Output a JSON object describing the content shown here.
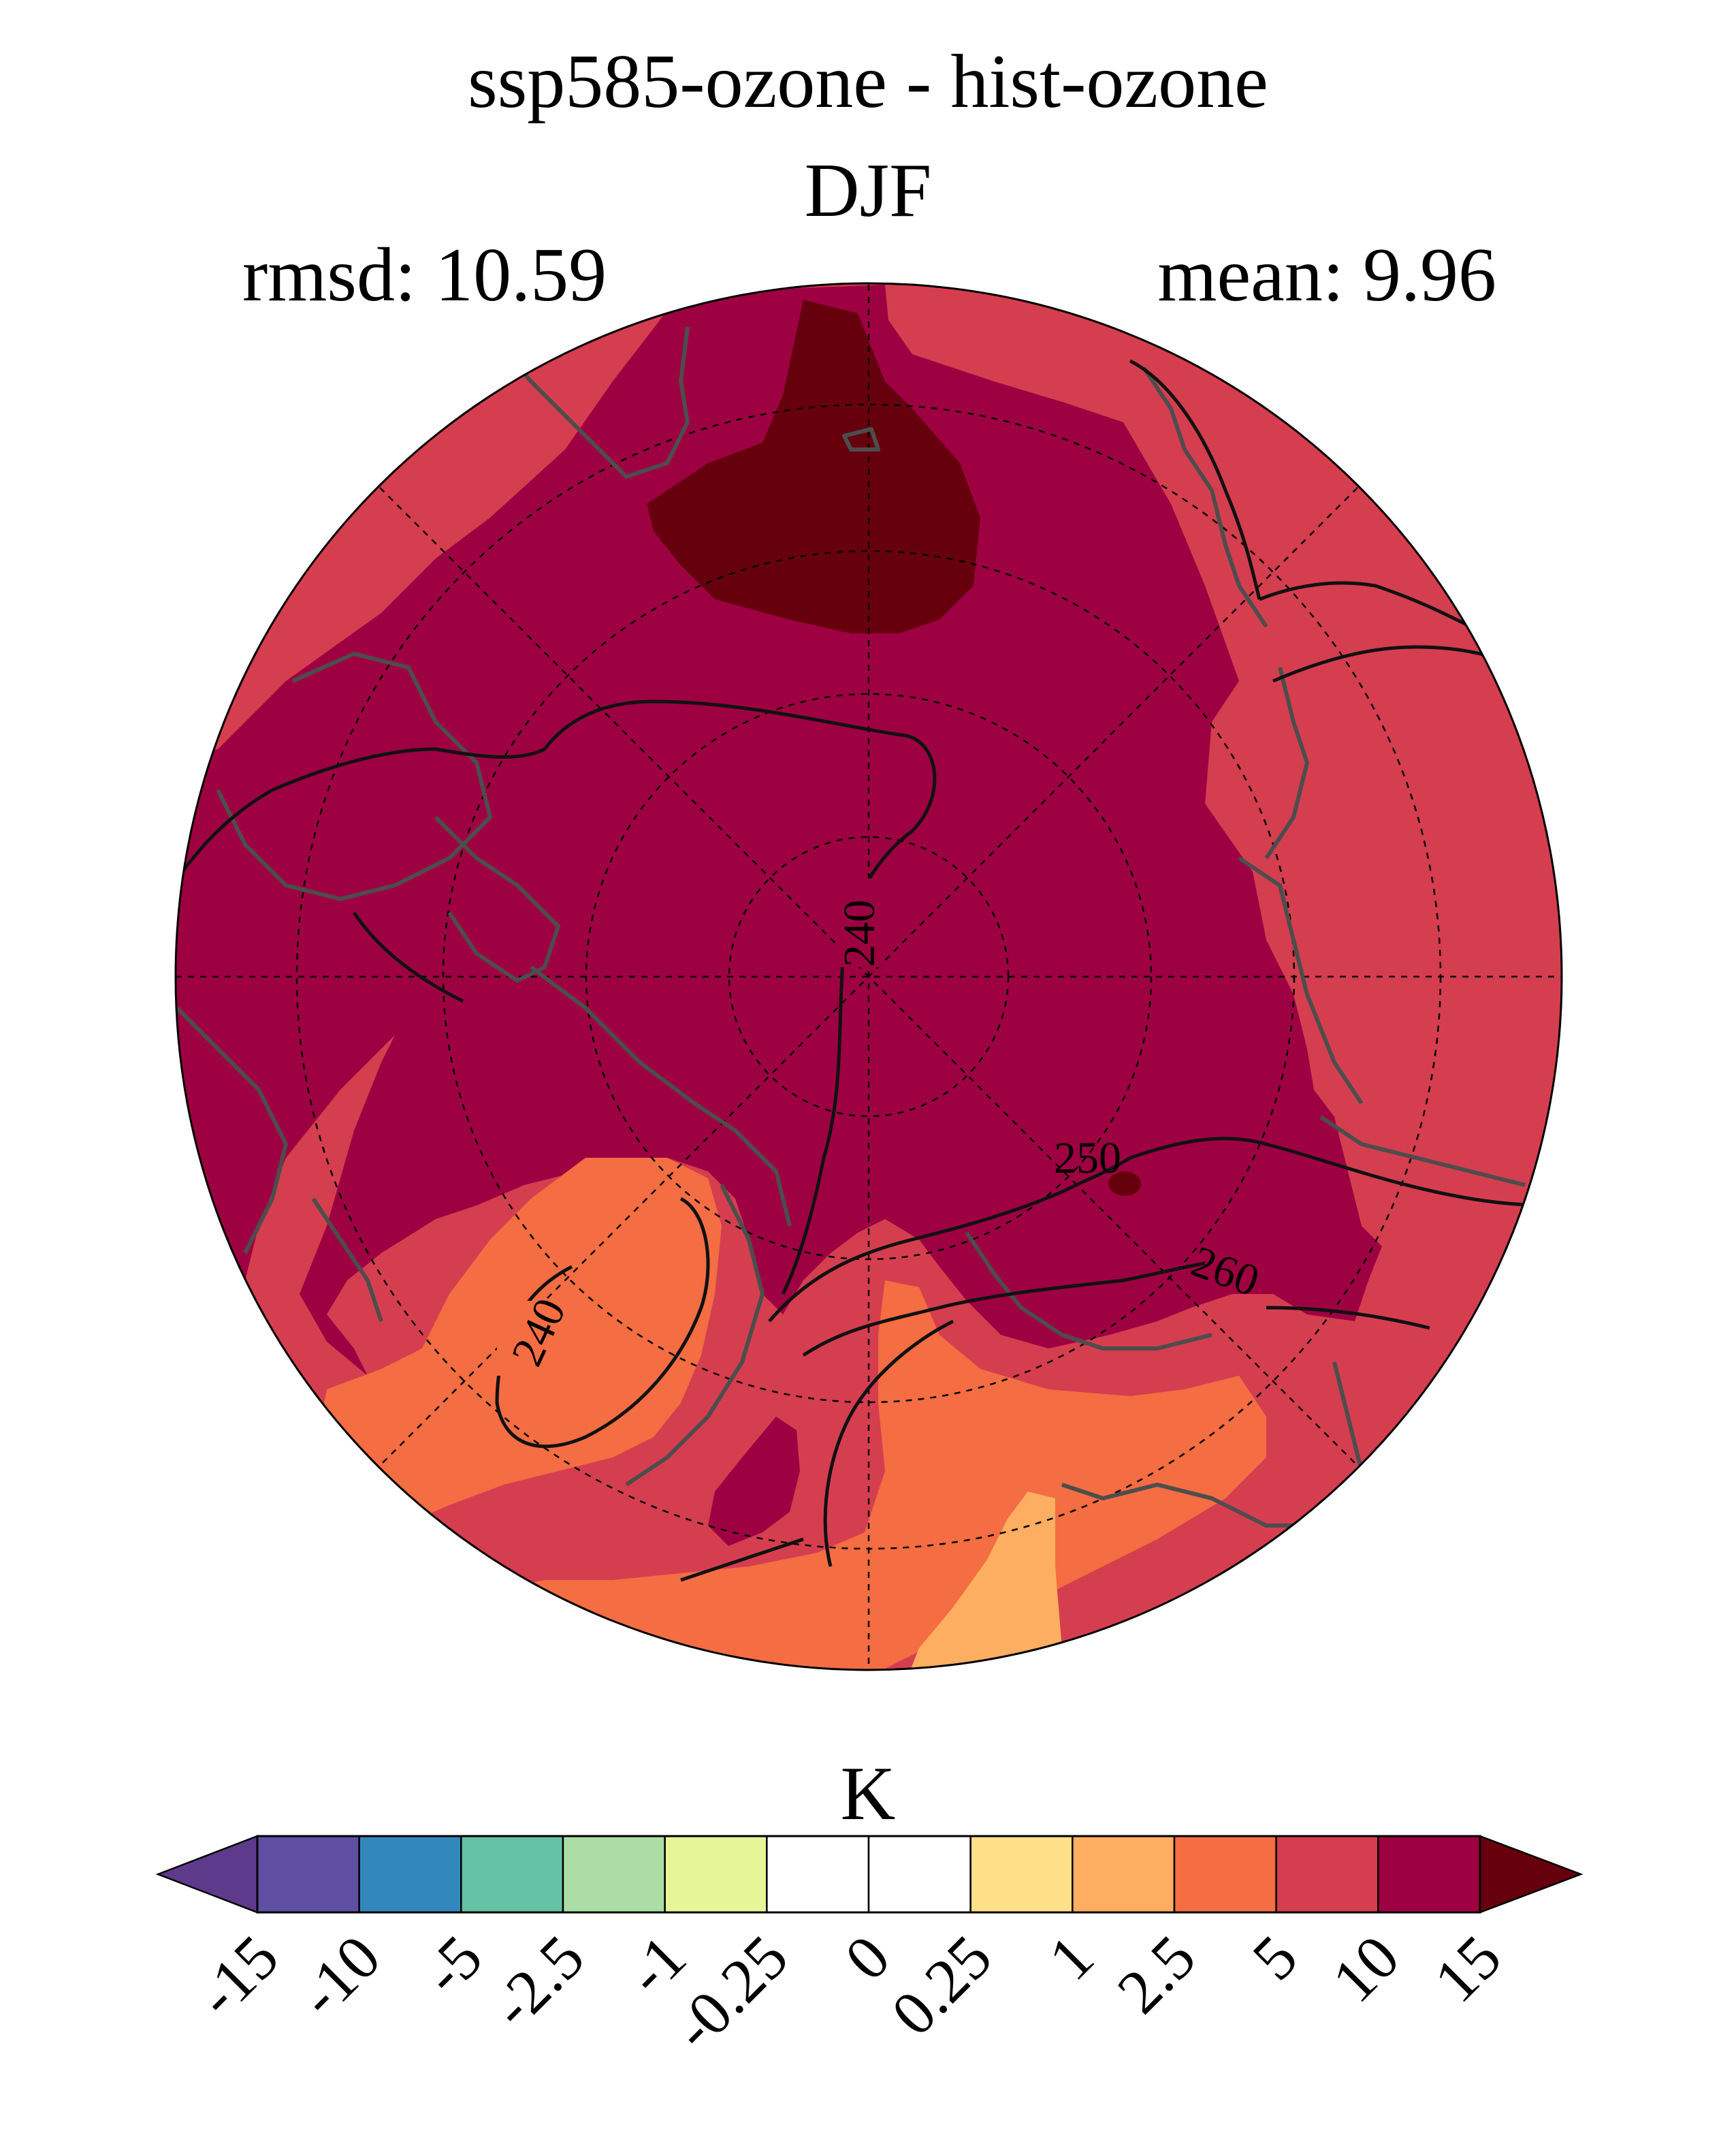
{
  "figure": {
    "title": "ssp585-ozone - hist-ozone",
    "season": "DJF",
    "rmsd": "rmsd: 10.59",
    "mean": "mean: 9.96"
  },
  "colorbar": {
    "unit": "K",
    "ticks": [
      "-15",
      "-10",
      "-5",
      "-2.5",
      "-1",
      "-0.25",
      "0",
      "0.25",
      "1",
      "2.5",
      "5",
      "10",
      "15"
    ],
    "colors": [
      "#5e4fa2",
      "#3288bd",
      "#66c2a5",
      "#abdda4",
      "#e6f598",
      "#ffffff",
      "#ffffff",
      "#fee08b",
      "#fdae61",
      "#f46d43",
      "#d53e4f",
      "#9e0142"
    ],
    "under_color": "#5e3a8c",
    "over_color": "#67000d"
  },
  "map": {
    "projection": "north polar stereographic",
    "contour_labels": [
      "240",
      "240",
      "250",
      "260"
    ],
    "fill_colors": {
      "bin_5_10": "#d53e4f",
      "bin_10_15": "#9e0142",
      "bin_over_15": "#67000d",
      "bin_2_5_5": "#f46d43",
      "bin_1_2_5": "#fdae61"
    }
  }
}
